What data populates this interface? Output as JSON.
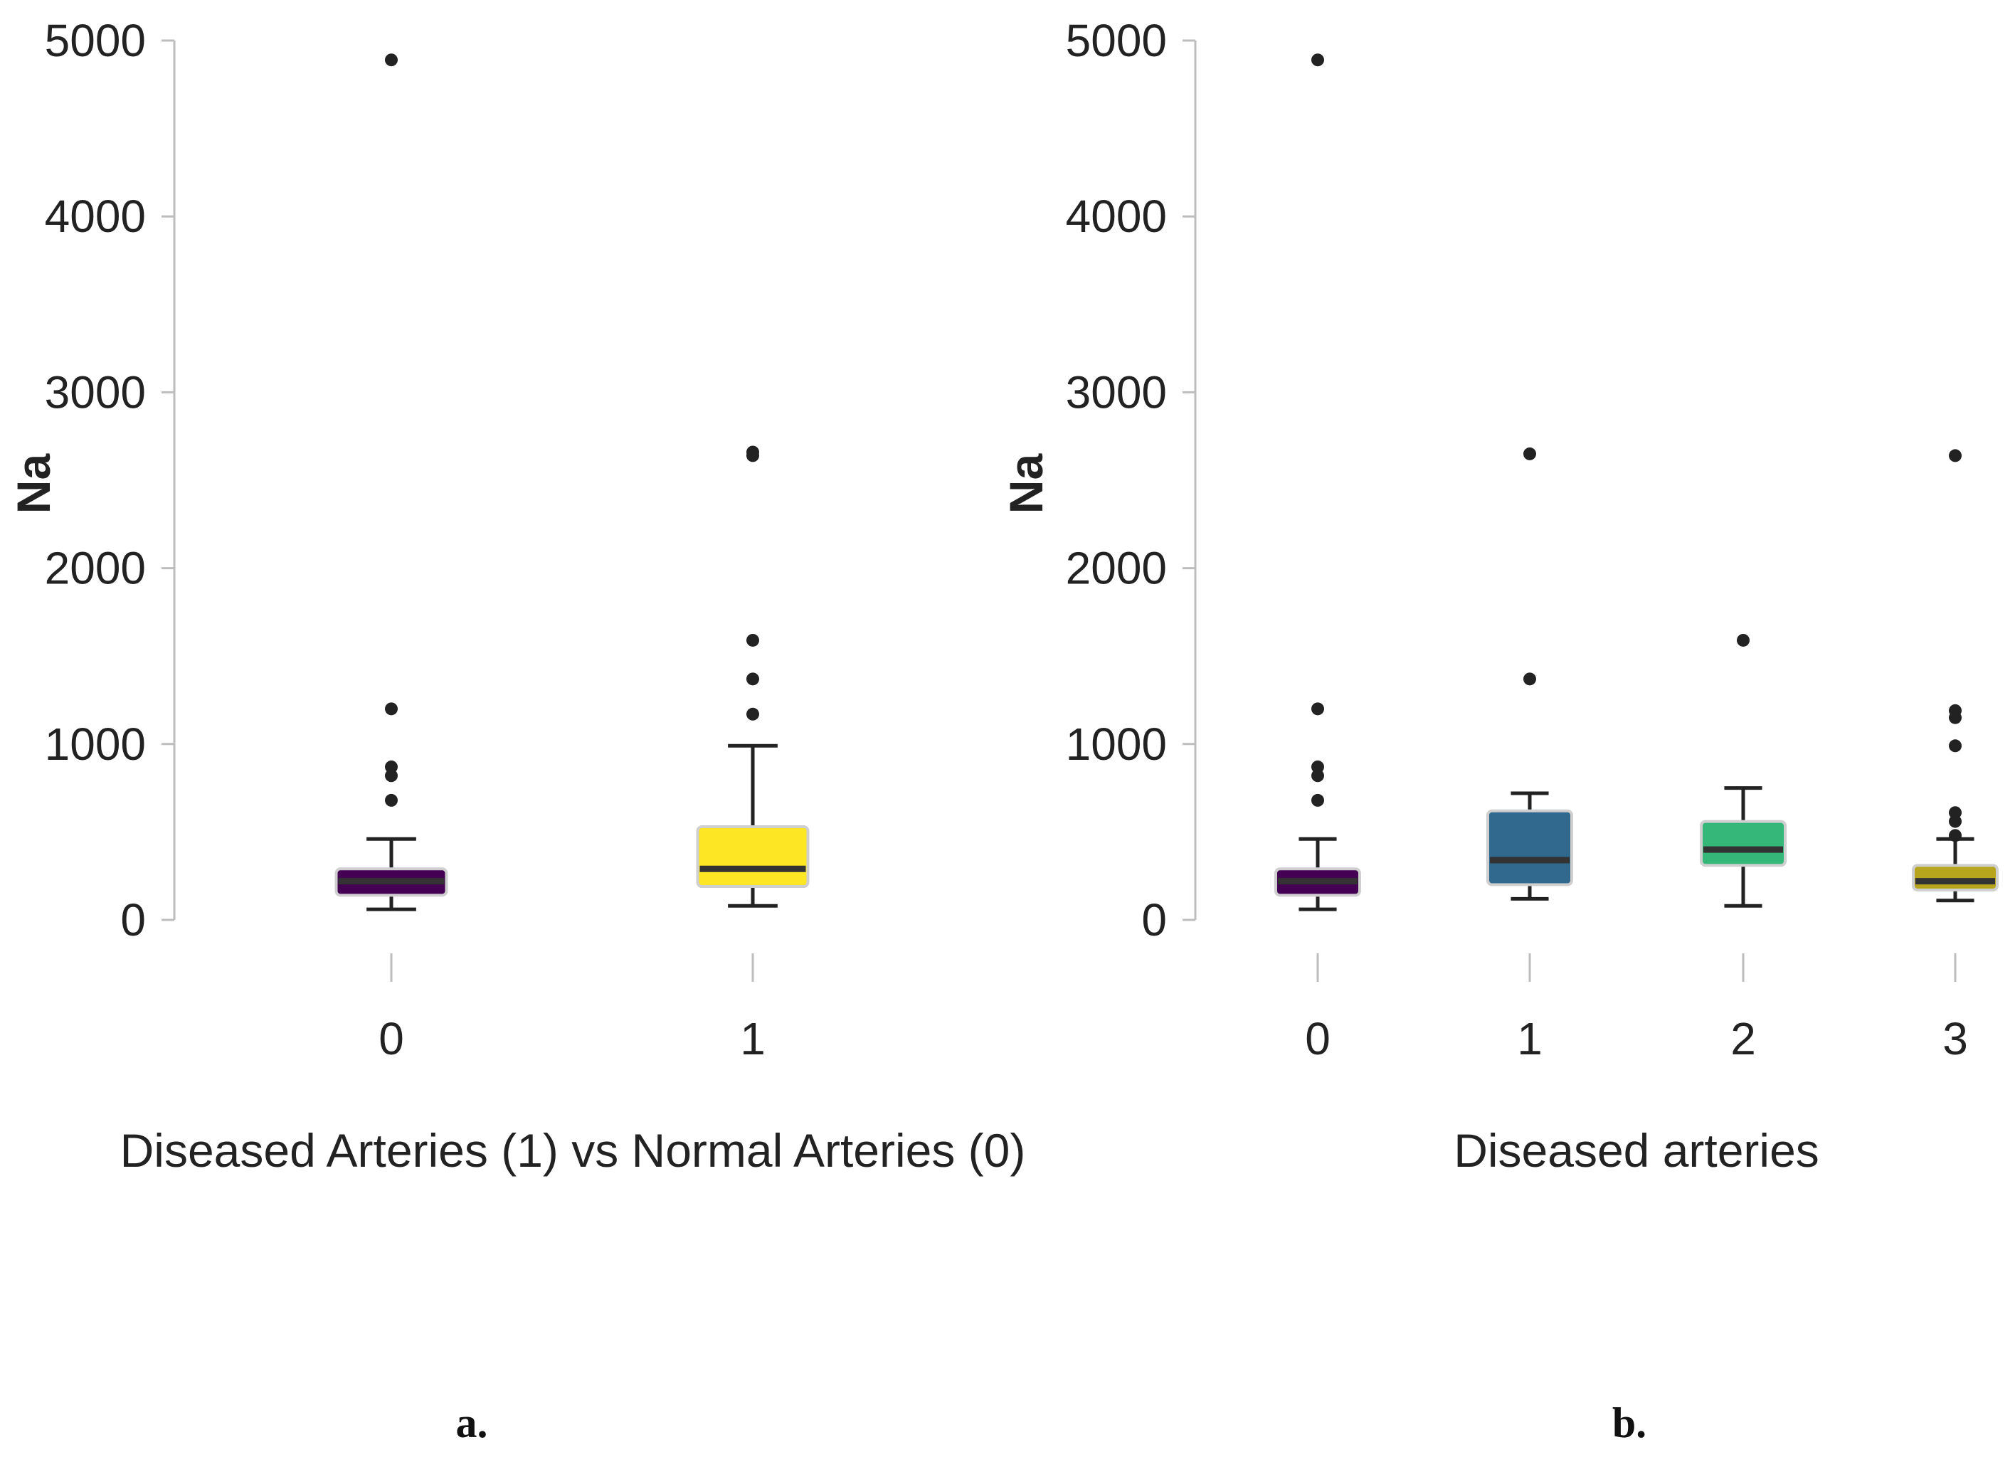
{
  "chart_data": [
    {
      "type": "box",
      "panel": "a.",
      "title": "",
      "xlabel": "Diseased Arteries (1) vs Normal Arteries (0)",
      "ylabel": "Na",
      "ylim": [
        0,
        5000
      ],
      "yticks": [
        0,
        1000,
        2000,
        3000,
        4000,
        5000
      ],
      "categories": [
        "0",
        "1"
      ],
      "boxes": [
        {
          "category": "0",
          "whisker_low": 60,
          "q1": 140,
          "median": 220,
          "q3": 290,
          "whisker_high": 460,
          "outliers": [
            680,
            820,
            870,
            1200,
            4890
          ],
          "color": "#440154"
        },
        {
          "category": "1",
          "whisker_low": 80,
          "q1": 190,
          "median": 290,
          "q3": 530,
          "whisker_high": 990,
          "outliers": [
            1170,
            1370,
            1590,
            2640,
            2660
          ],
          "color": "#FDE725"
        }
      ]
    },
    {
      "type": "box",
      "panel": "b.",
      "title": "",
      "xlabel": "Diseased arteries",
      "ylabel": "Na",
      "ylim": [
        0,
        5000
      ],
      "yticks": [
        0,
        1000,
        2000,
        3000,
        4000,
        5000
      ],
      "categories": [
        "0",
        "1",
        "2",
        "3"
      ],
      "boxes": [
        {
          "category": "0",
          "whisker_low": 60,
          "q1": 140,
          "median": 220,
          "q3": 290,
          "whisker_high": 460,
          "outliers": [
            680,
            820,
            870,
            1200,
            4890
          ],
          "color": "#440154"
        },
        {
          "category": "1",
          "whisker_low": 120,
          "q1": 200,
          "median": 340,
          "q3": 620,
          "whisker_high": 720,
          "outliers": [
            1370,
            2650
          ],
          "color": "#31688E"
        },
        {
          "category": "2",
          "whisker_low": 80,
          "q1": 310,
          "median": 400,
          "q3": 560,
          "whisker_high": 750,
          "outliers": [
            1590
          ],
          "color": "#35B779"
        },
        {
          "category": "3",
          "whisker_low": 110,
          "q1": 170,
          "median": 220,
          "q3": 310,
          "whisker_high": 460,
          "outliers": [
            480,
            560,
            610,
            990,
            1150,
            1190,
            2640
          ],
          "color": "#B8A51E"
        }
      ]
    }
  ]
}
